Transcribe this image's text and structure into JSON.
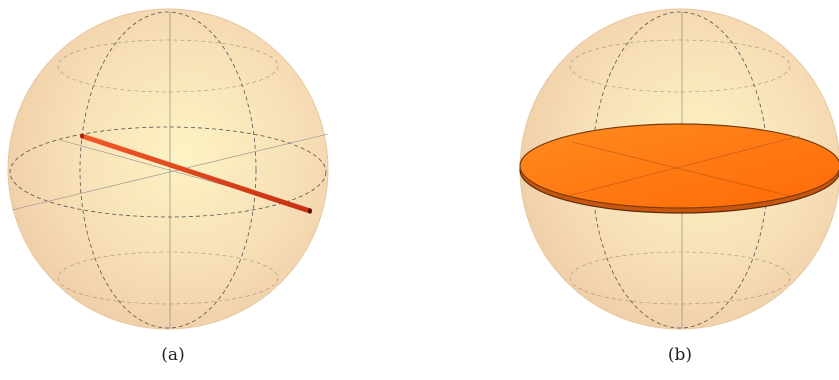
{
  "panels": [
    {
      "caption": "(a)",
      "content": "rod",
      "colors": {
        "sphere_fill": "#f7ddb8",
        "sphere_edge": "#e2c49a",
        "rod": "#e8421c",
        "rod_end": "#6b0f0a"
      }
    },
    {
      "caption": "(b)",
      "content": "disk",
      "colors": {
        "sphere_fill": "#f7ddb8",
        "sphere_edge": "#e2c49a",
        "disk": "#ff7a12",
        "disk_edge": "#7a3a0a"
      }
    }
  ],
  "grid_style": "dashed"
}
